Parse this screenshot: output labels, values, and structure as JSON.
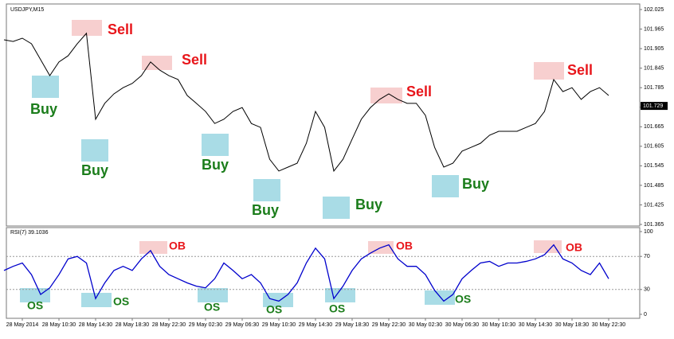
{
  "chart_data": [
    {
      "type": "line",
      "title": "USDJPY,M15",
      "color": "#000000",
      "values": [
        101.932,
        101.927,
        101.937,
        101.92,
        101.871,
        101.822,
        101.864,
        101.883,
        101.92,
        101.952,
        101.688,
        101.737,
        101.766,
        101.785,
        101.798,
        101.822,
        101.864,
        101.839,
        101.822,
        101.81,
        101.761,
        101.737,
        101.712,
        101.675,
        101.688,
        101.712,
        101.724,
        101.675,
        101.663,
        101.565,
        101.529,
        101.541,
        101.553,
        101.614,
        101.712,
        101.663,
        101.529,
        101.565,
        101.627,
        101.688,
        101.724,
        101.749,
        101.766,
        101.749,
        101.737,
        101.737,
        101.7,
        101.602,
        101.541,
        101.553,
        101.59,
        101.602,
        101.614,
        101.639,
        101.651,
        101.651,
        101.651,
        101.663,
        101.675,
        101.712,
        101.81,
        101.773,
        101.785,
        101.749,
        101.773,
        101.785,
        101.761
      ],
      "ylim": [
        101.365,
        102.025
      ],
      "yticks": [
        102.025,
        101.965,
        101.905,
        101.845,
        101.785,
        101.725,
        101.665,
        101.605,
        101.545,
        101.485,
        101.425,
        101.365
      ],
      "current_price": 101.729,
      "annotations": [
        "Sell",
        "Sell",
        "Sell",
        "Sell",
        "Buy",
        "Buy",
        "Buy",
        "Buy",
        "Buy",
        "Buy"
      ]
    },
    {
      "type": "line",
      "title": "RSI(7) 39.1036",
      "color": "#0000cc",
      "categories": [
        null,
        null,
        "28 May 2014",
        null,
        null,
        null,
        "28 May 10:30",
        null,
        null,
        null,
        "28 May 14:30",
        null,
        null,
        null,
        "28 May 18:30",
        null,
        null,
        null,
        "28 May 22:30",
        null,
        null,
        null,
        "29 May 02:30",
        null,
        null,
        null,
        "29 May 06:30",
        null,
        null,
        null,
        "29 May 10:30",
        null,
        null,
        null,
        "29 May 14:30",
        null,
        null,
        null,
        "29 May 18:30",
        null,
        null,
        null,
        "29 May 22:30",
        null,
        null,
        null,
        "30 May 02:30",
        null,
        null,
        null,
        "30 May 06:30",
        null,
        null,
        null,
        "30 May 10:30",
        null,
        null,
        null,
        "30 May 14:30",
        null,
        null,
        null,
        "30 May 18:30",
        null,
        null,
        null,
        "30 May 22:30"
      ],
      "values": [
        53,
        58,
        62,
        48,
        24,
        32,
        48,
        67,
        70,
        62,
        19,
        38,
        53,
        58,
        53,
        67,
        77,
        58,
        48,
        43,
        38,
        34,
        32,
        43,
        62,
        53,
        43,
        48,
        38,
        19,
        16,
        24,
        38,
        62,
        80,
        67,
        19,
        34,
        53,
        67,
        74,
        80,
        84,
        67,
        58,
        58,
        48,
        29,
        16,
        24,
        43,
        53,
        62,
        64,
        58,
        62,
        62,
        64,
        67,
        72,
        84,
        67,
        62,
        53,
        48,
        62,
        43
      ],
      "ylim": [
        0,
        100
      ],
      "yticks": [
        100,
        70,
        30,
        0
      ],
      "dashed_levels": [
        70,
        30
      ],
      "annotations": [
        "OB",
        "OB",
        "OB",
        "OS",
        "OS",
        "OS",
        "OS",
        "OS",
        "OS"
      ]
    }
  ]
}
